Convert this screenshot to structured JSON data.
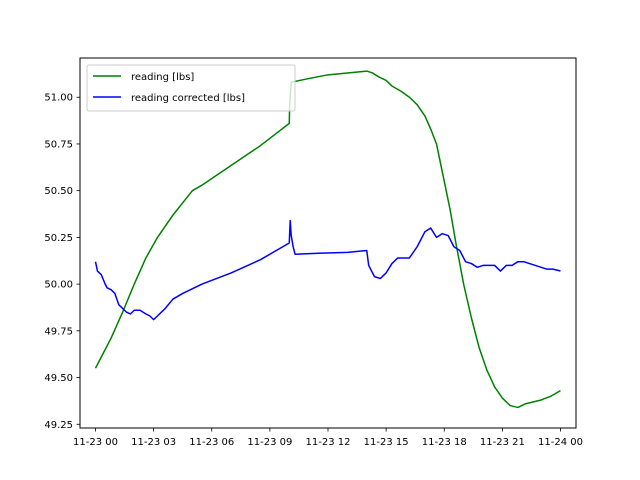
{
  "chart_data": {
    "type": "line",
    "title": "",
    "xlabel": "",
    "ylabel": "",
    "x_tick_labels": [
      "11-23 00",
      "11-23 03",
      "11-23 06",
      "11-23 09",
      "11-23 12",
      "11-23 15",
      "11-23 18",
      "11-23 21",
      "11-24 00"
    ],
    "x_tick_hours": [
      0,
      3,
      6,
      9,
      12,
      15,
      18,
      21,
      24
    ],
    "xlim": [
      -0.8,
      24.8
    ],
    "y_tick_labels": [
      "49.25",
      "49.50",
      "49.75",
      "50.00",
      "50.25",
      "50.50",
      "50.75",
      "51.00"
    ],
    "y_tick_values": [
      49.25,
      49.5,
      49.75,
      50.0,
      50.25,
      50.5,
      50.75,
      51.0
    ],
    "ylim": [
      49.23,
      51.21
    ],
    "grid": false,
    "legend_position": "upper-left",
    "series": [
      {
        "name": "reading [lbs]",
        "color": "#008000",
        "x": [
          0.0,
          0.3,
          0.8,
          1.4,
          2.0,
          2.6,
          3.2,
          4.0,
          5.0,
          5.5,
          6.5,
          7.5,
          8.5,
          10.0,
          10.02,
          10.1,
          11.0,
          12.0,
          13.0,
          14.0,
          14.3,
          14.6,
          15.0,
          15.3,
          15.8,
          16.2,
          16.6,
          17.0,
          17.3,
          17.6,
          18.0,
          18.3,
          18.6,
          19.0,
          19.4,
          19.8,
          20.2,
          20.6,
          21.0,
          21.4,
          21.8,
          22.2,
          22.6,
          23.0,
          23.5,
          24.0
        ],
        "y": [
          49.55,
          49.61,
          49.71,
          49.85,
          50.0,
          50.14,
          50.25,
          50.37,
          50.5,
          50.53,
          50.6,
          50.67,
          50.74,
          50.86,
          50.95,
          51.08,
          51.1,
          51.12,
          51.13,
          51.14,
          51.13,
          51.11,
          51.09,
          51.06,
          51.03,
          51.0,
          50.96,
          50.9,
          50.83,
          50.75,
          50.55,
          50.4,
          50.22,
          50.0,
          49.82,
          49.66,
          49.54,
          49.45,
          49.39,
          49.35,
          49.34,
          49.36,
          49.37,
          49.38,
          49.4,
          49.43
        ]
      },
      {
        "name": "reading corrected [lbs]",
        "color": "#0000ff",
        "x": [
          0.0,
          0.1,
          0.3,
          0.5,
          0.6,
          0.8,
          1.0,
          1.2,
          1.3,
          1.6,
          1.8,
          2.0,
          2.3,
          2.6,
          2.8,
          3.0,
          3.2,
          3.6,
          4.0,
          4.5,
          5.5,
          7.0,
          8.5,
          10.0,
          10.05,
          10.1,
          10.2,
          10.3,
          11.5,
          13.0,
          14.0,
          14.1,
          14.4,
          14.7,
          15.0,
          15.3,
          15.6,
          15.9,
          16.2,
          16.6,
          17.0,
          17.3,
          17.6,
          17.9,
          18.2,
          18.5,
          18.8,
          19.1,
          19.4,
          19.7,
          20.0,
          20.3,
          20.6,
          20.9,
          21.2,
          21.5,
          21.8,
          22.1,
          22.4,
          22.7,
          23.0,
          23.3,
          23.6,
          24.0
        ],
        "y": [
          50.12,
          50.07,
          50.05,
          50.0,
          49.98,
          49.97,
          49.95,
          49.89,
          49.88,
          49.85,
          49.84,
          49.86,
          49.86,
          49.84,
          49.83,
          49.81,
          49.83,
          49.87,
          49.92,
          49.95,
          50.0,
          50.06,
          50.13,
          50.22,
          50.34,
          50.26,
          50.2,
          50.16,
          50.165,
          50.17,
          50.18,
          50.1,
          50.04,
          50.03,
          50.06,
          50.11,
          50.14,
          50.14,
          50.14,
          50.2,
          50.28,
          50.3,
          50.25,
          50.27,
          50.26,
          50.2,
          50.18,
          50.12,
          50.11,
          50.09,
          50.1,
          50.1,
          50.1,
          50.07,
          50.1,
          50.1,
          50.12,
          50.12,
          50.11,
          50.1,
          50.09,
          50.08,
          50.08,
          50.07
        ]
      }
    ]
  }
}
